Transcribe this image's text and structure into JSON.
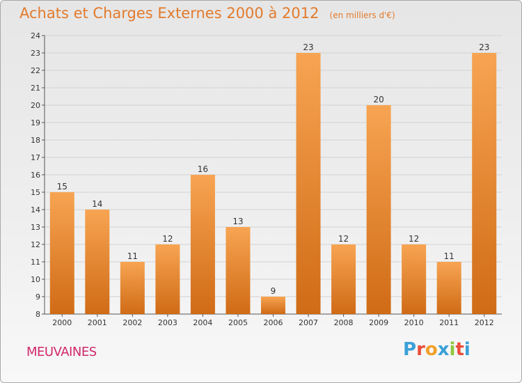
{
  "header": {
    "title": "Achats et Charges Externes 2000 à 2012",
    "subtitle": "(en milliers d'€)"
  },
  "footer": {
    "place": "MEUVAINES",
    "logo_text": "Proxiti"
  },
  "colors": {
    "accent": "#e27a2c",
    "bar_light": "#f7a452",
    "bar_dark": "#d06b16",
    "place": "#d0286a",
    "logo_letters": [
      "#3aa0d8",
      "#e94e3b",
      "#f2a02a",
      "#3aa0d8",
      "#8dc63f",
      "#e94e3b",
      "#3aa0d8"
    ]
  },
  "chart_data": {
    "type": "bar",
    "categories": [
      "2000",
      "2001",
      "2002",
      "2003",
      "2004",
      "2005",
      "2006",
      "2007",
      "2008",
      "2009",
      "2010",
      "2011",
      "2012"
    ],
    "values": [
      15,
      14,
      11,
      12,
      16,
      13,
      9,
      23,
      12,
      20,
      12,
      11,
      23
    ],
    "ylim": [
      8,
      24
    ],
    "yticks": [
      8,
      9,
      10,
      11,
      12,
      13,
      14,
      15,
      16,
      17,
      18,
      19,
      20,
      21,
      22,
      23,
      24
    ],
    "grid": true
  }
}
